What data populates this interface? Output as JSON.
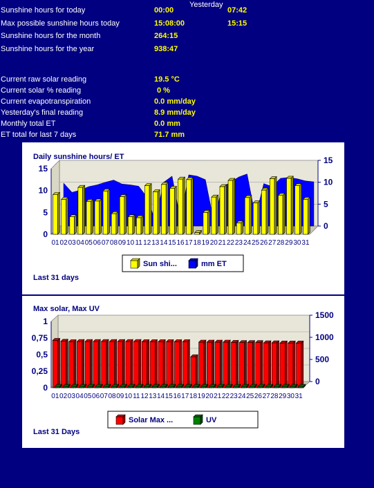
{
  "stats": {
    "yesterday_label": "Yesterday",
    "rows1": [
      {
        "label": "Sunshine hours for today",
        "value": "00:00",
        "yesterday": "07:42"
      },
      {
        "label": "Max possible sunshine hours today",
        "value": "15:08:00",
        "yesterday": "15:15"
      },
      {
        "label": "Sunshine hours for the month",
        "value": "264:15"
      },
      {
        "label": "Sunshine hours for the year",
        "value": "938:47"
      }
    ],
    "rows2": [
      {
        "label": "Current raw solar reading",
        "value": "19.5 °C"
      },
      {
        "label": "Current solar % reading",
        "value": "0 %"
      },
      {
        "label": "Current evapotranspiration",
        "value": "0.0 mm/day"
      },
      {
        "label": "Yesterday's final reading",
        "value": "8.9 mm/day"
      },
      {
        "label": "Monthly total ET",
        "value": "0.0 mm"
      },
      {
        "label": "ET total for last 7 days",
        "value": "71.7 mm"
      }
    ]
  },
  "colors": {
    "background": "#000080",
    "sun_bars": "#ffff00",
    "et_area": "#0000ff",
    "solar_bars": "#ff0000",
    "uv_bars": "#008000",
    "axis_text": "#000080"
  },
  "chart_data": [
    {
      "type": "bar",
      "title": "Daily sunshine hours/ ET",
      "footer": "Last 31 days",
      "categories": [
        "01",
        "02",
        "03",
        "04",
        "05",
        "06",
        "07",
        "08",
        "09",
        "10",
        "11",
        "12",
        "13",
        "14",
        "15",
        "16",
        "17",
        "18",
        "19",
        "20",
        "21",
        "22",
        "23",
        "24",
        "25",
        "26",
        "27",
        "28",
        "29",
        "30",
        "31"
      ],
      "left_axis": {
        "ticks": [
          "15",
          "10",
          "5",
          "0"
        ],
        "ylim": [
          0,
          15
        ]
      },
      "right_axis": {
        "ticks": [
          "15",
          "10",
          "5",
          "0"
        ],
        "ylim": [
          0,
          15
        ]
      },
      "series": [
        {
          "name": "Sun shi...",
          "kind": "bar",
          "axis": "left",
          "values": [
            9.1,
            8.0,
            4.0,
            10.7,
            7.5,
            7.6,
            9.9,
            4.7,
            8.6,
            4.0,
            3.8,
            11.1,
            9.7,
            11.4,
            10.5,
            12.6,
            12.5,
            0.4,
            5.0,
            8.5,
            10.9,
            12.3,
            2.6,
            8.4,
            7.2,
            10.1,
            12.7,
            8.9,
            12.8,
            11.1,
            8.0
          ]
        },
        {
          "name": "mm ET",
          "kind": "area",
          "axis": "right",
          "values": [
            9.8,
            7.7,
            8.2,
            9.0,
            9.4,
            10.0,
            10.5,
            9.6,
            9.4,
            9.1,
            6.6,
            1.1,
            10.0,
            11.4,
            1.5,
            11.7,
            11.4,
            10.6,
            1.1,
            8.8,
            10.0,
            11.2,
            11.9,
            2.0,
            9.7,
            9.0,
            10.9,
            11.1,
            10.8,
            10.3,
            10.1
          ]
        }
      ],
      "legend": [
        "Sun shi...",
        "mm ET"
      ],
      "grid": true
    },
    {
      "type": "bar",
      "title": "Max solar, Max UV",
      "footer": "Last 31 Days",
      "categories": [
        "01",
        "02",
        "03",
        "04",
        "05",
        "06",
        "07",
        "08",
        "09",
        "10",
        "11",
        "12",
        "13",
        "14",
        "15",
        "16",
        "17",
        "18",
        "19",
        "20",
        "21",
        "22",
        "23",
        "24",
        "25",
        "26",
        "27",
        "28",
        "29",
        "30",
        "31"
      ],
      "left_axis": {
        "ticks": [
          "1",
          "0,75",
          "0,5",
          "0,25",
          "0"
        ],
        "ylim": [
          0,
          1
        ]
      },
      "right_axis": {
        "ticks": [
          "1500",
          "1000",
          "500",
          "0"
        ],
        "ylim": [
          0,
          1500
        ]
      },
      "series": [
        {
          "name": "Solar Max ...",
          "kind": "bar",
          "axis": "right",
          "values": [
            1070,
            1050,
            1040,
            1045,
            1045,
            1045,
            1045,
            1045,
            1045,
            1045,
            1045,
            1040,
            1040,
            1040,
            1040,
            1040,
            1040,
            700,
            1030,
            1030,
            1030,
            1030,
            1025,
            1020,
            1020,
            1020,
            1015,
            1015,
            1010,
            1010,
            1010
          ]
        },
        {
          "name": "UV",
          "kind": "bar",
          "axis": "left",
          "values": [
            0.02,
            0.02,
            0.02,
            0.02,
            0.02,
            0.02,
            0.02,
            0.02,
            0.02,
            0.02,
            0.02,
            0.02,
            0.02,
            0.02,
            0.02,
            0.02,
            0.02,
            0.02,
            0.02,
            0.02,
            0.02,
            0.02,
            0.02,
            0.02,
            0.02,
            0.02,
            0.02,
            0.02,
            0.02,
            0.02,
            0.02
          ]
        }
      ],
      "legend": [
        "Solar Max ...",
        "UV"
      ],
      "grid": true
    }
  ]
}
